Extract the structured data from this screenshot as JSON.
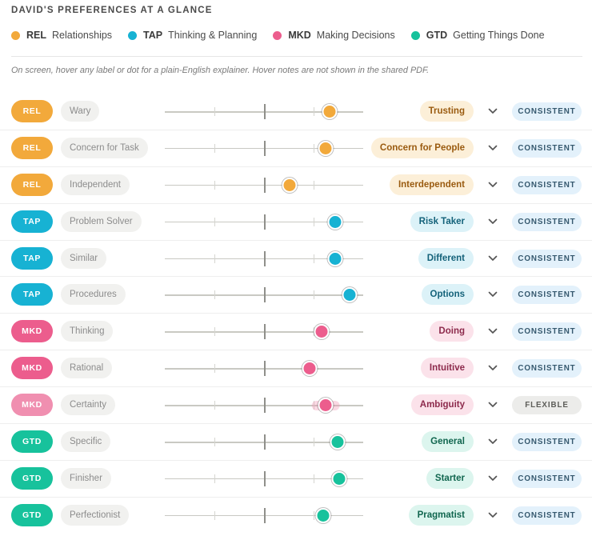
{
  "title": "DAVID'S PREFERENCES AT A GLANCE",
  "legend": [
    {
      "code": "REL",
      "label": "Relationships",
      "color": "#f2a93b"
    },
    {
      "code": "TAP",
      "label": "Thinking & Planning",
      "color": "#17b2d3"
    },
    {
      "code": "MKD",
      "label": "Making Decisions",
      "color": "#ec5d8d"
    },
    {
      "code": "GTD",
      "label": "Getting Things Done",
      "color": "#17c29c"
    }
  ],
  "hint": "On screen, hover any label or dot for a plain-English explainer. Hover notes are not shown in the shared PDF.",
  "rows": [
    {
      "code": "REL",
      "left": "Wary",
      "right": "Trusting",
      "position": 0.83,
      "status": "CONSISTENT"
    },
    {
      "code": "REL",
      "left": "Concern for Task",
      "right": "Concern for People",
      "position": 0.81,
      "status": "CONSISTENT"
    },
    {
      "code": "REL",
      "left": "Independent",
      "right": "Interdependent",
      "position": 0.63,
      "status": "CONSISTENT"
    },
    {
      "code": "TAP",
      "left": "Problem Solver",
      "right": "Risk Taker",
      "position": 0.86,
      "status": "CONSISTENT"
    },
    {
      "code": "TAP",
      "left": "Similar",
      "right": "Different",
      "position": 0.86,
      "status": "CONSISTENT"
    },
    {
      "code": "TAP",
      "left": "Procedures",
      "right": "Options",
      "position": 0.93,
      "status": "CONSISTENT"
    },
    {
      "code": "MKD",
      "left": "Thinking",
      "right": "Doing",
      "position": 0.79,
      "status": "CONSISTENT"
    },
    {
      "code": "MKD",
      "left": "Rational",
      "right": "Intuitive",
      "position": 0.73,
      "status": "CONSISTENT"
    },
    {
      "code": "MKD",
      "left": "Certainty",
      "right": "Ambiguity",
      "position": 0.81,
      "status": "FLEXIBLE",
      "range": [
        0.74,
        0.88
      ]
    },
    {
      "code": "GTD",
      "left": "Specific",
      "right": "General",
      "position": 0.87,
      "status": "CONSISTENT"
    },
    {
      "code": "GTD",
      "left": "Finisher",
      "right": "Starter",
      "position": 0.88,
      "status": "CONSISTENT"
    },
    {
      "code": "GTD",
      "left": "Perfectionist",
      "right": "Pragmatist",
      "position": 0.8,
      "status": "CONSISTENT"
    }
  ],
  "colors": {
    "REL": {
      "main": "#f2a93b",
      "pill_bg": "#fcefd8",
      "pill_text": "#9a5b10"
    },
    "TAP": {
      "main": "#17b2d3",
      "pill_bg": "#dcf2f8",
      "pill_text": "#14627a"
    },
    "MKD": {
      "main": "#ec5d8d",
      "pill_bg": "#fbe2ea",
      "pill_text": "#8d2a4c"
    },
    "GTD": {
      "main": "#17c29c",
      "pill_bg": "#dcf5ee",
      "pill_text": "#11664f"
    },
    "MKD_flexible": "#f08fb0"
  },
  "icons": {
    "row_toggle": "chevron-down-icon"
  }
}
